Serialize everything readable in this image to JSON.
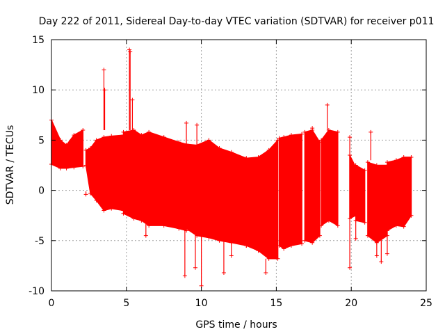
{
  "chart_data": {
    "type": "scatter",
    "title": "Day 222 of 2011, Sidereal Day-to-day VTEC variation (SDTVAR) for receiver p011",
    "xlabel": "GPS time / hours",
    "ylabel": "SDTVAR / TECUs",
    "xlim": [
      0,
      25
    ],
    "ylim": [
      -10,
      15
    ],
    "xticks": [
      0,
      5,
      10,
      15,
      20,
      25
    ],
    "yticks": [
      -10,
      -5,
      0,
      5,
      10,
      15
    ],
    "grid": true,
    "series_color": "#ff0000",
    "marker": "plus",
    "bands": [
      {
        "x0": 0.0,
        "x1": 2.1,
        "segments": [
          [
            0.0,
            2.6,
            7.0
          ],
          [
            0.6,
            2.2,
            5.0
          ],
          [
            1.0,
            2.2,
            4.5
          ],
          [
            1.5,
            2.3,
            5.5
          ],
          [
            2.1,
            2.4,
            6.0
          ]
        ]
      },
      {
        "x0": 2.3,
        "x1": 4.8,
        "segments": [
          [
            2.3,
            2.5,
            4.0
          ],
          [
            2.6,
            -0.3,
            4.2
          ],
          [
            3.0,
            -1.0,
            5.0
          ],
          [
            3.5,
            -2.0,
            5.3
          ],
          [
            4.0,
            -1.8,
            5.4
          ],
          [
            4.8,
            -2.0,
            5.5
          ]
        ]
      },
      {
        "x0": 4.8,
        "x1": 9.0,
        "segments": [
          [
            4.8,
            -2.3,
            5.8
          ],
          [
            5.5,
            -2.8,
            6.0
          ],
          [
            6.0,
            -3.0,
            5.5
          ],
          [
            6.5,
            -3.5,
            5.8
          ],
          [
            7.5,
            -3.5,
            5.3
          ],
          [
            8.5,
            -3.8,
            4.8
          ],
          [
            9.0,
            -4.0,
            4.6
          ]
        ]
      },
      {
        "x0": 9.0,
        "x1": 13.0,
        "segments": [
          [
            9.0,
            -3.8,
            4.6
          ],
          [
            9.7,
            -4.5,
            4.5
          ],
          [
            10.5,
            -4.7,
            5.0
          ],
          [
            11.2,
            -5.0,
            4.2
          ],
          [
            12.0,
            -5.2,
            3.8
          ],
          [
            13.0,
            -5.5,
            3.2
          ]
        ]
      },
      {
        "x0": 13.0,
        "x1": 15.1,
        "segments": [
          [
            13.0,
            -5.5,
            3.2
          ],
          [
            13.8,
            -6.0,
            3.3
          ],
          [
            14.5,
            -6.8,
            4.0
          ],
          [
            15.1,
            -6.8,
            5.0
          ]
        ]
      },
      {
        "x0": 15.2,
        "x1": 16.7,
        "segments": [
          [
            15.2,
            -5.5,
            5.2
          ],
          [
            15.5,
            -5.8,
            5.3
          ],
          [
            16.0,
            -5.5,
            5.5
          ],
          [
            16.7,
            -5.3,
            5.6
          ]
        ]
      },
      {
        "x0": 16.9,
        "x1": 17.9,
        "segments": [
          [
            16.9,
            -5.0,
            5.8
          ],
          [
            17.4,
            -5.2,
            6.0
          ],
          [
            17.9,
            -4.5,
            4.8
          ]
        ]
      },
      {
        "x0": 18.0,
        "x1": 19.1,
        "segments": [
          [
            18.0,
            -3.5,
            5.0
          ],
          [
            18.5,
            -3.0,
            6.0
          ],
          [
            19.1,
            -3.5,
            5.8
          ]
        ]
      },
      {
        "x0": 19.9,
        "x1": 20.3,
        "segments": [
          [
            19.9,
            -2.8,
            3.5
          ],
          [
            20.3,
            -2.5,
            2.3
          ]
        ]
      },
      {
        "x0": 20.3,
        "x1": 20.9,
        "segments": [
          [
            20.3,
            -3.0,
            2.5
          ],
          [
            20.9,
            -3.2,
            2.0
          ]
        ]
      },
      {
        "x0": 21.1,
        "x1": 22.4,
        "segments": [
          [
            21.1,
            -4.5,
            2.8
          ],
          [
            21.7,
            -5.2,
            2.5
          ],
          [
            22.4,
            -4.5,
            2.5
          ]
        ]
      },
      {
        "x0": 22.4,
        "x1": 24.0,
        "segments": [
          [
            22.4,
            -4.0,
            2.8
          ],
          [
            23.0,
            -3.5,
            3.0
          ],
          [
            23.5,
            -3.6,
            3.3
          ],
          [
            24.0,
            -2.5,
            3.3
          ]
        ]
      }
    ],
    "spikes": [
      {
        "x": 3.5,
        "y0": 6.0,
        "y1": 12.0
      },
      {
        "x": 3.55,
        "y0": 6.0,
        "y1": 10.0
      },
      {
        "x": 5.2,
        "y0": 6.0,
        "y1": 14.0
      },
      {
        "x": 5.25,
        "y0": 6.0,
        "y1": 13.8
      },
      {
        "x": 5.4,
        "y0": 6.0,
        "y1": 9.0
      },
      {
        "x": 6.3,
        "y0": -3.0,
        "y1": -4.5
      },
      {
        "x": 8.9,
        "y0": -4.0,
        "y1": -8.5
      },
      {
        "x": 9.0,
        "y0": 4.6,
        "y1": 6.7
      },
      {
        "x": 9.6,
        "y0": -4.5,
        "y1": -7.7
      },
      {
        "x": 9.7,
        "y0": 4.5,
        "y1": 6.5
      },
      {
        "x": 10.0,
        "y0": -4.5,
        "y1": -9.5
      },
      {
        "x": 11.5,
        "y0": -5.0,
        "y1": -8.2
      },
      {
        "x": 12.0,
        "y0": -5.0,
        "y1": -6.5
      },
      {
        "x": 14.3,
        "y0": -6.8,
        "y1": -8.2
      },
      {
        "x": 17.4,
        "y0": 5.8,
        "y1": 6.2
      },
      {
        "x": 18.4,
        "y0": 6.0,
        "y1": 8.5
      },
      {
        "x": 19.9,
        "y0": -2.8,
        "y1": -7.7
      },
      {
        "x": 19.9,
        "y0": 3.5,
        "y1": 5.3
      },
      {
        "x": 20.3,
        "y0": -2.6,
        "y1": -4.8
      },
      {
        "x": 21.3,
        "y0": 3.0,
        "y1": 5.8
      },
      {
        "x": 21.7,
        "y0": -5.2,
        "y1": -6.5
      },
      {
        "x": 22.0,
        "y0": -4.8,
        "y1": -7.1
      },
      {
        "x": 22.4,
        "y0": -4.0,
        "y1": -6.3
      },
      {
        "x": 2.3,
        "y0": -0.1,
        "y1": -0.4
      }
    ]
  }
}
